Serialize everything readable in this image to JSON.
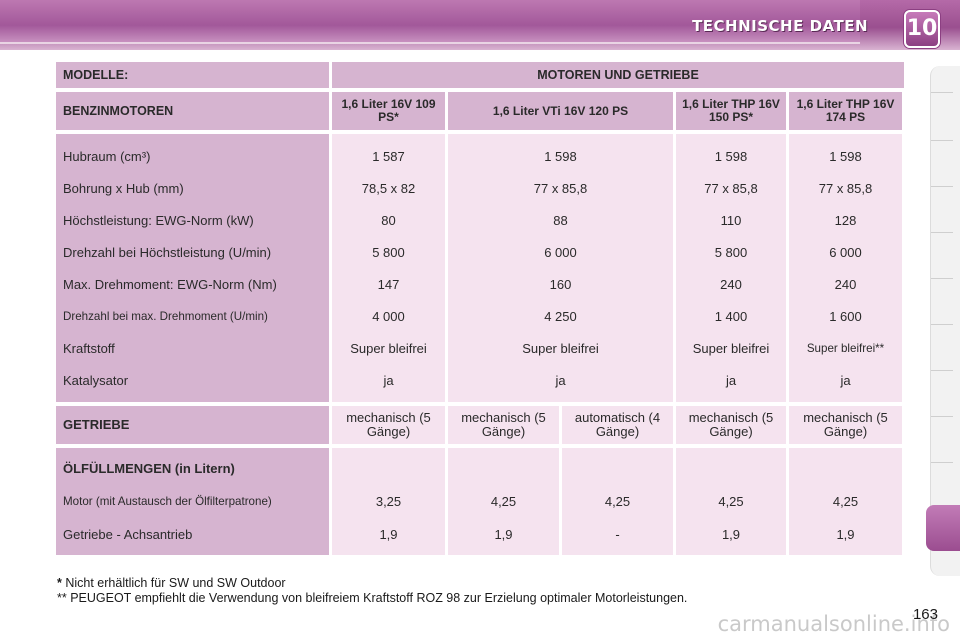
{
  "header": {
    "title": "TECHNISCHE DATEN",
    "chapter": "10"
  },
  "table": {
    "models_label": "MODELLE:",
    "models_header": "MOTOREN UND GETRIEBE",
    "engines_label": "BENZINMOTOREN",
    "engines": [
      "1,6 Liter 16V 109 PS*",
      "1,6 Liter VTi 16V 120 PS",
      "1,6 Liter THP 16V 150 PS*",
      "1,6 Liter THP 16V 174 PS"
    ],
    "spec_labels": [
      "Hubraum (cm³)",
      "Bohrung x Hub (mm)",
      "Höchstleistung: EWG-Norm (kW)",
      "Drehzahl bei Höchstleistung (U/min)",
      "Max. Drehmoment: EWG-Norm (Nm)",
      "Drehzahl bei max. Drehmoment (U/min)",
      "Kraftstoff",
      "Katalysator"
    ],
    "spec_values": [
      [
        "1 587",
        "78,5 x 82",
        "80",
        "5 800",
        "147",
        "4 000",
        "Super bleifrei",
        "ja"
      ],
      [
        "1 598",
        "77 x 85,8",
        "88",
        "6 000",
        "160",
        "4 250",
        "Super bleifrei",
        "ja"
      ],
      [
        "1 598",
        "77 x 85,8",
        "110",
        "5 800",
        "240",
        "1 400",
        "Super bleifrei",
        "ja"
      ],
      [
        "1 598",
        "77 x 85,8",
        "128",
        "6 000",
        "240",
        "1 600",
        "Super bleifrei**",
        "ja"
      ]
    ],
    "gear_label": "GETRIEBE",
    "gears": [
      "mechanisch (5 Gänge)",
      "mechanisch (5 Gänge)",
      "automatisch (4 Gänge)",
      "mechanisch (5 Gänge)",
      "mechanisch (5 Gänge)"
    ],
    "oil_label": "ÖLFÜLLMENGEN (in Litern)",
    "oil_rows": [
      "Motor (mit Austausch der Ölfilterpatrone)",
      "Getriebe - Achsantrieb"
    ],
    "oil_values": [
      [
        "3,25",
        "1,9"
      ],
      [
        "4,25",
        "1,9"
      ],
      [
        "4,25",
        "-"
      ],
      [
        "4,25",
        "1,9"
      ],
      [
        "4,25",
        "1,9"
      ]
    ]
  },
  "footnotes": {
    "star": "*",
    "note1": "Nicht erhältlich für SW und SW Outdoor",
    "note2": "** PEUGEOT empfiehlt die Verwendung von bleifreiem Kraftstoff ROZ 98 zur Erzielung optimaler Motorleistungen."
  },
  "page_number": "163",
  "watermark": "carmanualsonline.info"
}
